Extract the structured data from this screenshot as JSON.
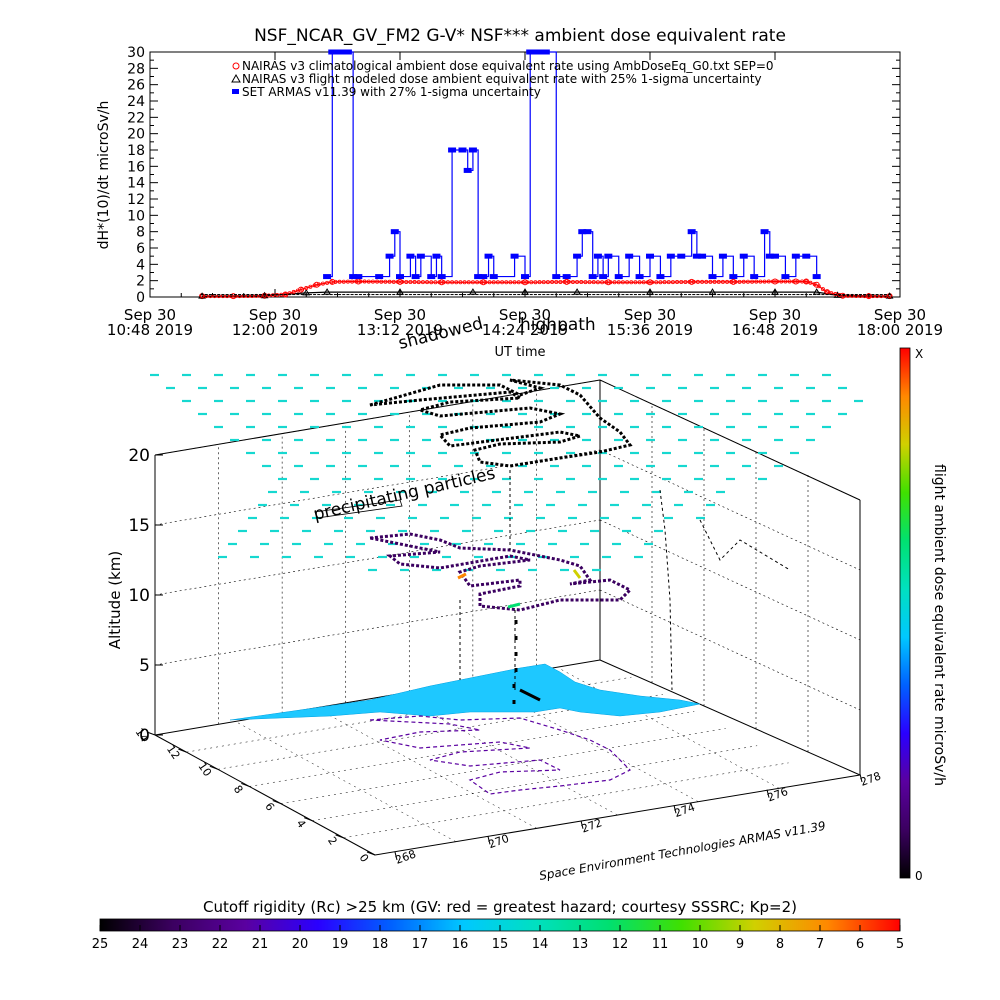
{
  "chart_data": [
    {
      "type": "line",
      "title": "NSF_NCAR_GV_FM2 G-V* NSF*** ambient dose equivalent rate",
      "ylabel": "dH*(10)/dt microSv/h",
      "xlabel": "UT time",
      "ylim": [
        0,
        30
      ],
      "yticks": [
        0,
        1,
        2,
        3,
        4,
        5,
        6,
        7,
        8,
        9,
        10,
        11,
        12,
        13,
        14,
        15,
        16,
        17,
        18,
        19,
        20,
        21,
        22,
        23,
        24,
        25,
        26,
        27,
        28,
        29,
        30
      ],
      "ytick_labels": [
        "0",
        "2",
        "4",
        "6",
        "8",
        "10",
        "12",
        "14",
        "16",
        "18",
        "20",
        "22",
        "24",
        "26",
        "28",
        "30"
      ],
      "xlim_hours": [
        10.8,
        18.0
      ],
      "xtick_hours": [
        10.8,
        12.0,
        13.2,
        14.4,
        15.6,
        16.8,
        18.0
      ],
      "xtick_labels": [
        [
          "Sep 30",
          "10:48 2019"
        ],
        [
          "Sep 30",
          "12:00 2019"
        ],
        [
          "Sep 30",
          "13:12 2019"
        ],
        [
          "Sep 30",
          "14:24 2019"
        ],
        [
          "Sep 30",
          "15:36 2019"
        ],
        [
          "Sep 30",
          "16:48 2019"
        ],
        [
          "Sep 30",
          "18:00 2019"
        ]
      ],
      "legend_position": "top-left",
      "overlay_labels": [
        "shadowed",
        "highpath"
      ],
      "series": [
        {
          "name": "NAIRAS v3 climatological ambient dose equivalent rate using AmbDoseEq_G0.txt SEP=0",
          "color": "#ff0000",
          "marker": "circle",
          "x": [
            11.3,
            11.6,
            11.9,
            12.1,
            12.25,
            12.4,
            12.55,
            12.8,
            13.2,
            13.6,
            14.0,
            14.4,
            14.8,
            15.2,
            15.6,
            16.0,
            16.4,
            16.8,
            17.0,
            17.1,
            17.2,
            17.3,
            17.45,
            17.7,
            17.9
          ],
          "y": [
            0.1,
            0.1,
            0.15,
            0.3,
            0.9,
            1.5,
            1.85,
            1.9,
            1.85,
            1.8,
            1.8,
            1.8,
            1.85,
            1.8,
            1.8,
            1.85,
            1.85,
            1.9,
            1.9,
            1.9,
            1.5,
            0.6,
            0.15,
            0.1,
            0.1
          ]
        },
        {
          "name": "NAIRAS v3 flight modeled dose ambient equivalent rate with 25% 1-sigma uncertainty",
          "color": "#000000",
          "marker": "triangle",
          "x": [
            11.3,
            11.9,
            12.3,
            12.5,
            13.2,
            13.9,
            14.4,
            14.9,
            15.6,
            16.2,
            16.8,
            17.2,
            17.4,
            17.9
          ],
          "y": [
            0.1,
            0.15,
            0.5,
            0.6,
            0.6,
            0.6,
            0.6,
            0.6,
            0.6,
            0.6,
            0.6,
            0.6,
            0.2,
            0.1
          ]
        },
        {
          "name": "SET ARMAS v11.39 with 27% 1-sigma uncertainty",
          "color": "#0000ff",
          "marker": "square",
          "x": [
            12.5,
            12.55,
            12.6,
            12.65,
            12.7,
            12.75,
            12.8,
            13.0,
            13.1,
            13.15,
            13.2,
            13.3,
            13.35,
            13.4,
            13.5,
            13.55,
            13.6,
            13.7,
            13.8,
            13.85,
            13.9,
            13.95,
            14.0,
            14.05,
            14.1,
            14.3,
            14.4,
            14.45,
            14.5,
            14.55,
            14.6,
            14.7,
            14.8,
            14.9,
            14.95,
            15.0,
            15.05,
            15.1,
            15.15,
            15.2,
            15.3,
            15.4,
            15.5,
            15.6,
            15.7,
            15.8,
            15.9,
            16.0,
            16.05,
            16.1,
            16.2,
            16.3,
            16.4,
            16.5,
            16.6,
            16.7,
            16.75,
            16.8,
            16.9,
            17.0,
            17.1,
            17.2
          ],
          "y": [
            2.5,
            30,
            30,
            30,
            30,
            2.5,
            2.5,
            2.5,
            5,
            8,
            2.5,
            5,
            2.5,
            5,
            2.5,
            5,
            2.5,
            18,
            18,
            15.5,
            18,
            2.5,
            2.5,
            5,
            2.5,
            5,
            2.5,
            30,
            30,
            30,
            30,
            2.5,
            2.5,
            5,
            8,
            8,
            2.5,
            5,
            2.5,
            5,
            2.5,
            5,
            2.5,
            5,
            2.5,
            5,
            5,
            8,
            5,
            5,
            2.5,
            5,
            2.5,
            5,
            2.5,
            8,
            5,
            5,
            2.5,
            5,
            5,
            2.5
          ]
        }
      ]
    },
    {
      "type": "scatter",
      "title": "",
      "zlabel": "Altitude (km)",
      "zlim": [
        0,
        20
      ],
      "z_ticks": [
        "0",
        "5",
        "10",
        "15",
        "20"
      ],
      "longitude_ticks": [
        "268",
        "270",
        "272",
        "274",
        "276",
        "278"
      ],
      "latitude_ticks": [
        "0",
        "2",
        "4",
        "6",
        "8",
        "10",
        "12",
        "14"
      ],
      "annotations": [
        "precipitating particles",
        "Space Environment Technologies ARMAS v11.39"
      ],
      "colorbar": {
        "label": "flight ambient dose equivalent rate microSv/h",
        "min_label": "0",
        "max_label": "X",
        "colors": [
          "#000000",
          "#3b0060",
          "#5a00a0",
          "#2a00ff",
          "#0060ff",
          "#00c8ff",
          "#00e0c0",
          "#00e070",
          "#40e000",
          "#d0d000",
          "#ff8800",
          "#ff0000"
        ]
      },
      "track_segments": [
        {
          "name": "high-altitude track",
          "altitude_km": 20,
          "color": "#000000"
        },
        {
          "name": "mid-altitude track",
          "altitude_km": 12,
          "color": "#3b0060"
        },
        {
          "name": "ground shadow",
          "altitude_km": 0,
          "color": "#5a00a0"
        }
      ]
    },
    {
      "type": "heatmap",
      "title": "Cutoff rigidity (Rc) >25 km (GV: red = greatest hazard; courtesy SSSRC; Kp=2)",
      "tick_labels": [
        "25",
        "24",
        "23",
        "22",
        "21",
        "20",
        "19",
        "18",
        "17",
        "16",
        "15",
        "14",
        "13",
        "12",
        "11",
        "10",
        "9",
        "8",
        "7",
        "6",
        "5"
      ],
      "colors": [
        "#000000",
        "#3b0060",
        "#5a00a0",
        "#2a00ff",
        "#0060ff",
        "#00c8ff",
        "#00e0c0",
        "#00e070",
        "#40e000",
        "#d0d000",
        "#ff8800",
        "#ff0000"
      ]
    }
  ]
}
